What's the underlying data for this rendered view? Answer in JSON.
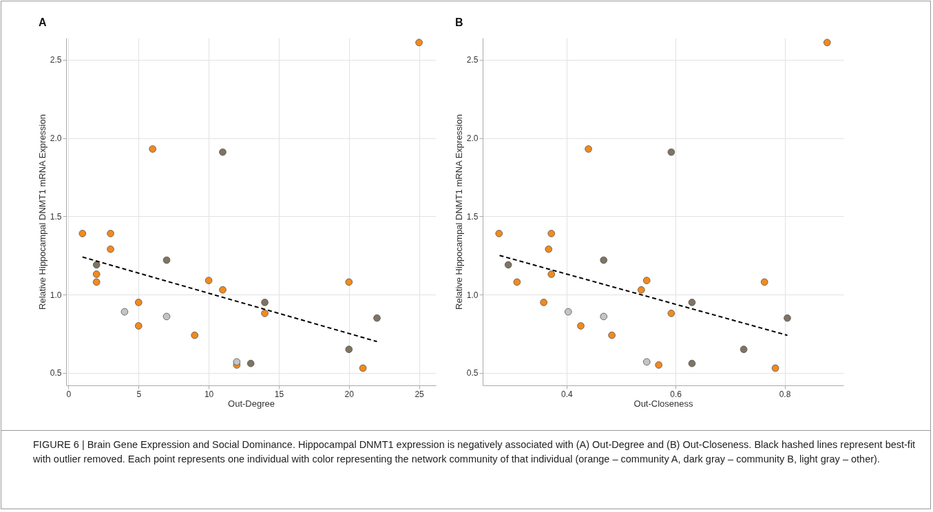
{
  "chart_data": [
    {
      "type": "scatter",
      "title": "A",
      "xlabel": "Out-Degree",
      "ylabel": "Relative Hippocampal DNMT1 mRNA Expression",
      "xlim": [
        -0.17,
        26.2
      ],
      "ylim": [
        0.42,
        2.64
      ],
      "xticks": [
        0,
        5,
        10,
        15,
        20,
        25
      ],
      "yticks": [
        {
          "value": 0.5,
          "label": "0.5"
        },
        {
          "value": 1,
          "label": "1.0"
        },
        {
          "value": 1.5,
          "label": "1.5"
        },
        {
          "value": 2,
          "label": "2.0"
        },
        {
          "value": 2.5,
          "label": "2.5"
        }
      ],
      "grid": true,
      "series": [
        {
          "type": "scatter",
          "color": "#f28a1e",
          "x": [
            1,
            3,
            3,
            2,
            2,
            6,
            5,
            5,
            9,
            10,
            11,
            14,
            12,
            20,
            21,
            25
          ],
          "values": [
            1.39,
            1.39,
            1.29,
            1.13,
            1.08,
            1.93,
            0.95,
            0.8,
            0.74,
            1.09,
            1.03,
            0.88,
            0.55,
            1.08,
            0.53,
            2.61
          ]
        },
        {
          "type": "scatter",
          "color": "#7f7462",
          "x": [
            2,
            7,
            11,
            14,
            13,
            20,
            22
          ],
          "values": [
            1.19,
            1.22,
            1.91,
            0.95,
            0.56,
            0.65,
            0.85
          ]
        },
        {
          "type": "scatter",
          "color": "#c4c4c4",
          "x": [
            4,
            7,
            12
          ],
          "values": [
            0.89,
            0.86,
            0.57
          ]
        },
        {
          "type": "line",
          "color": "#000000",
          "line_style": "dashed",
          "x": [
            1,
            22
          ],
          "values": [
            1.24,
            0.7
          ]
        }
      ]
    },
    {
      "type": "scatter",
      "title": "B",
      "xlabel": "Out-Closeness",
      "ylabel": "Relative Hippocampal DNMT1 mRNA Expression",
      "xlim": [
        0.246,
        0.908
      ],
      "ylim": [
        0.42,
        2.64
      ],
      "xticks": [
        0.4,
        0.6,
        0.8
      ],
      "yticks": [
        {
          "value": 0.5,
          "label": "0.5"
        },
        {
          "value": 1,
          "label": "1.0"
        },
        {
          "value": 1.5,
          "label": "1.5"
        },
        {
          "value": 2,
          "label": "2.0"
        },
        {
          "value": 2.5,
          "label": "2.5"
        }
      ],
      "grid": true,
      "series": [
        {
          "type": "scatter",
          "color": "#f28a1e",
          "x": [
            0.276,
            0.372,
            0.367,
            0.372,
            0.309,
            0.44,
            0.358,
            0.426,
            0.483,
            0.547,
            0.537,
            0.592,
            0.569,
            0.763,
            0.783,
            0.878
          ],
          "values": [
            1.39,
            1.39,
            1.29,
            1.13,
            1.08,
            1.93,
            0.95,
            0.8,
            0.74,
            1.09,
            1.03,
            0.88,
            0.55,
            1.08,
            0.53,
            2.61
          ]
        },
        {
          "type": "scatter",
          "color": "#7f7462",
          "x": [
            0.293,
            0.468,
            0.592,
            0.63,
            0.63,
            0.725,
            0.805
          ],
          "values": [
            1.19,
            1.22,
            1.91,
            0.95,
            0.56,
            0.65,
            0.85
          ]
        },
        {
          "type": "scatter",
          "color": "#c4c4c4",
          "x": [
            0.403,
            0.468,
            0.547
          ],
          "values": [
            0.89,
            0.86,
            0.57
          ]
        },
        {
          "type": "line",
          "color": "#000000",
          "line_style": "dashed",
          "x": [
            0.277,
            0.805
          ],
          "values": [
            1.25,
            0.74
          ]
        }
      ],
      "annotations": [
        "FIGURE 6 | Brain Gene Expression and Social Dominance. Hippocampal DNMT1 expression is negatively associated with (A) Out-Degree and (B) Out-Closeness. Black hashed lines represent best-fit with outlier removed. Each point represents one individual with color representing the network community of that individual (orange – community A, dark gray – community B, light gray – other)."
      ]
    }
  ]
}
